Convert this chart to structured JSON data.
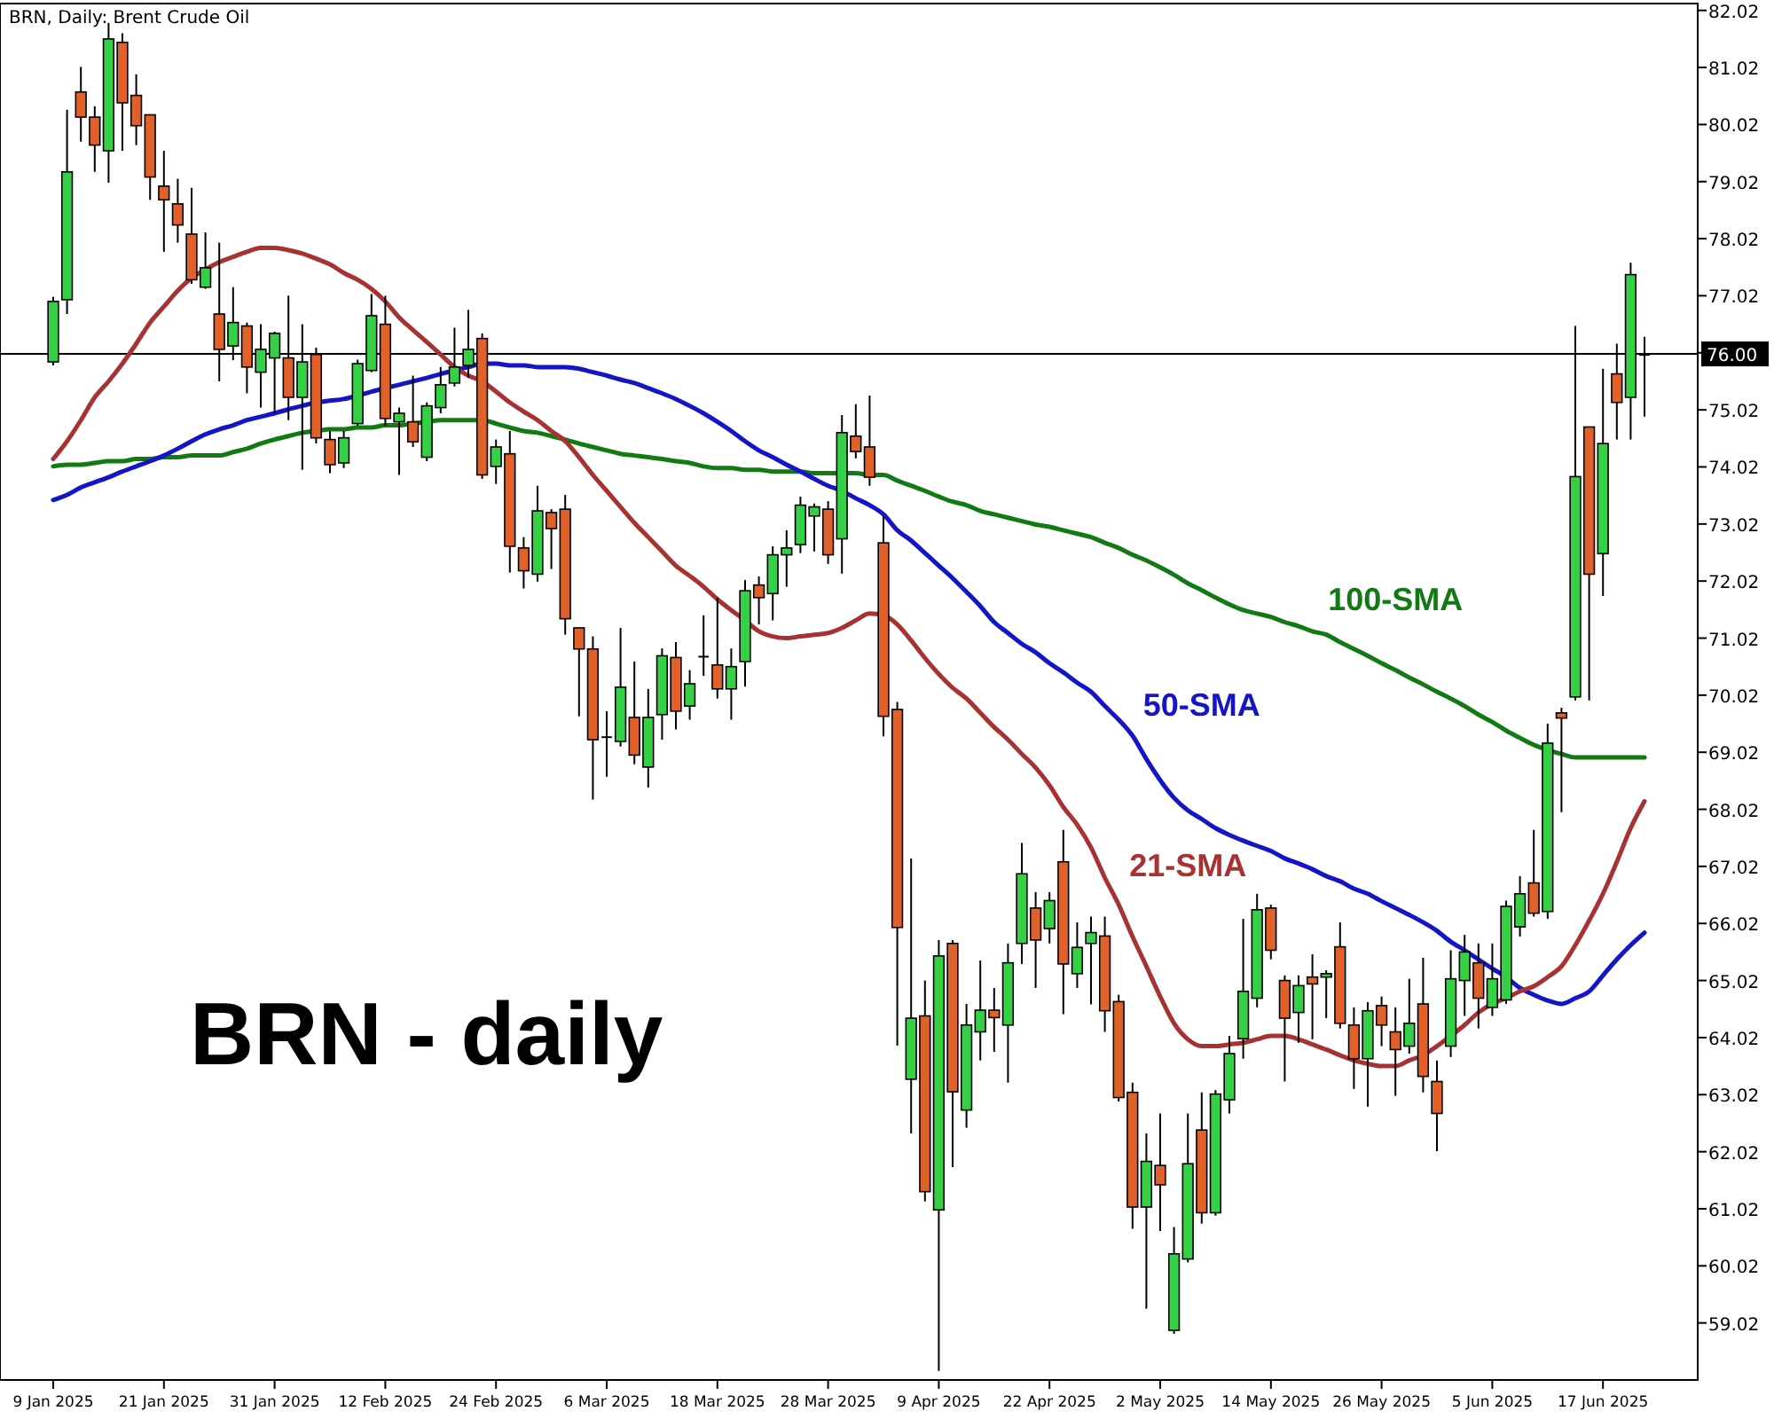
{
  "chart_data": {
    "type": "candlestick",
    "title": "BRN, Daily:  Brent Crude Oil",
    "annotations": [
      "BRN - daily"
    ],
    "categories": [
      "9 Jan 2025",
      null,
      null,
      null,
      null,
      null,
      null,
      null,
      "21 Jan 2025",
      null,
      null,
      null,
      null,
      null,
      null,
      null,
      "31 Jan 2025",
      null,
      null,
      null,
      null,
      null,
      null,
      null,
      "12 Feb 2025",
      null,
      null,
      null,
      null,
      null,
      null,
      null,
      "24 Feb 2025",
      null,
      null,
      null,
      null,
      null,
      null,
      null,
      "6 Mar 2025",
      null,
      null,
      null,
      null,
      null,
      null,
      null,
      "18 Mar 2025",
      null,
      null,
      null,
      null,
      null,
      null,
      null,
      "28 Mar 2025",
      null,
      null,
      null,
      null,
      null,
      null,
      null,
      "9 Apr 2025",
      null,
      null,
      null,
      null,
      null,
      null,
      null,
      "22 Apr 2025",
      null,
      null,
      null,
      null,
      null,
      null,
      null,
      "2 May 2025",
      null,
      null,
      null,
      null,
      null,
      null,
      null,
      "14 May 2025",
      null,
      null,
      null,
      null,
      null,
      null,
      null,
      "26 May 2025",
      null,
      null,
      null,
      null,
      null,
      null,
      null,
      "5 Jun 2025",
      null,
      null,
      null,
      null,
      null,
      null,
      null,
      "17 Jun 2025",
      null,
      null,
      null
    ],
    "series": [
      {
        "type": "line",
        "name": "100-SMA",
        "color": "#127a12",
        "values": [
          74.03,
          74.06,
          74.06,
          74.09,
          74.12,
          74.12,
          74.16,
          74.16,
          74.19,
          74.19,
          74.22,
          74.22,
          74.22,
          74.28,
          74.34,
          74.43,
          74.5,
          74.56,
          74.62,
          74.65,
          74.68,
          74.68,
          74.71,
          74.71,
          74.75,
          74.75,
          74.78,
          74.81,
          74.84,
          74.84,
          74.84,
          74.84,
          74.78,
          74.71,
          74.65,
          74.62,
          74.56,
          74.5,
          74.43,
          74.37,
          74.31,
          74.25,
          74.22,
          74.19,
          74.16,
          74.12,
          74.09,
          74.03,
          74.0,
          74.0,
          73.97,
          73.97,
          73.94,
          73.94,
          73.94,
          73.91,
          73.91,
          73.91,
          73.91,
          73.88,
          73.88,
          73.78,
          73.69,
          73.6,
          73.5,
          73.41,
          73.35,
          73.25,
          73.19,
          73.13,
          73.07,
          73.01,
          72.97,
          72.91,
          72.85,
          72.79,
          72.69,
          72.6,
          72.48,
          72.38,
          72.26,
          72.13,
          71.98,
          71.86,
          71.73,
          71.61,
          71.51,
          71.45,
          71.39,
          71.3,
          71.23,
          71.14,
          71.08,
          70.95,
          70.83,
          70.71,
          70.58,
          70.46,
          70.33,
          70.21,
          70.08,
          69.96,
          69.83,
          69.68,
          69.55,
          69.4,
          69.27,
          69.15,
          69.06,
          68.99,
          68.93,
          68.93,
          68.93,
          68.93,
          68.93,
          68.93
        ]
      },
      {
        "type": "line",
        "name": "50-SMA",
        "color": "#1414c8",
        "values": [
          73.44,
          73.53,
          73.66,
          73.75,
          73.84,
          73.94,
          74.03,
          74.12,
          74.22,
          74.34,
          74.47,
          74.59,
          74.68,
          74.75,
          74.84,
          74.9,
          74.96,
          75.03,
          75.09,
          75.15,
          75.18,
          75.21,
          75.27,
          75.34,
          75.4,
          75.46,
          75.52,
          75.58,
          75.65,
          75.71,
          75.77,
          75.83,
          75.83,
          75.8,
          75.8,
          75.77,
          75.77,
          75.77,
          75.74,
          75.68,
          75.62,
          75.55,
          75.49,
          75.4,
          75.31,
          75.21,
          75.09,
          74.96,
          74.81,
          74.65,
          74.47,
          74.31,
          74.19,
          74.06,
          73.94,
          73.81,
          73.69,
          73.6,
          73.47,
          73.35,
          73.19,
          72.91,
          72.73,
          72.51,
          72.29,
          72.07,
          71.83,
          71.58,
          71.3,
          71.11,
          70.92,
          70.77,
          70.58,
          70.42,
          70.24,
          70.08,
          69.83,
          69.59,
          69.31,
          68.9,
          68.53,
          68.22,
          68.0,
          67.85,
          67.69,
          67.57,
          67.47,
          67.38,
          67.29,
          67.16,
          67.07,
          66.97,
          66.85,
          66.76,
          66.63,
          66.54,
          66.41,
          66.29,
          66.17,
          66.04,
          65.89,
          65.7,
          65.55,
          65.39,
          65.23,
          65.08,
          64.89,
          64.77,
          64.67,
          64.61,
          64.71,
          64.83,
          65.11,
          65.39,
          65.64,
          65.86
        ]
      },
      {
        "type": "line",
        "name": "21-SMA",
        "color": "#a83232",
        "values": [
          74.16,
          74.47,
          74.84,
          75.24,
          75.52,
          75.83,
          76.18,
          76.55,
          76.83,
          77.11,
          77.33,
          77.48,
          77.61,
          77.7,
          77.79,
          77.86,
          77.86,
          77.82,
          77.76,
          77.67,
          77.57,
          77.42,
          77.3,
          77.14,
          76.92,
          76.64,
          76.42,
          76.21,
          75.99,
          75.77,
          75.62,
          75.52,
          75.34,
          75.15,
          74.99,
          74.84,
          74.65,
          74.47,
          74.19,
          73.88,
          73.6,
          73.32,
          73.04,
          72.79,
          72.54,
          72.29,
          72.11,
          71.92,
          71.7,
          71.51,
          71.33,
          71.14,
          71.05,
          71.02,
          71.05,
          71.08,
          71.11,
          71.2,
          71.33,
          71.45,
          71.42,
          71.26,
          70.98,
          70.67,
          70.39,
          70.15,
          69.96,
          69.71,
          69.46,
          69.24,
          68.99,
          68.75,
          68.44,
          68.06,
          67.75,
          67.35,
          66.82,
          66.35,
          65.79,
          65.27,
          64.74,
          64.27,
          63.99,
          63.87,
          63.87,
          63.9,
          63.93,
          63.99,
          64.05,
          64.05,
          63.99,
          63.9,
          63.81,
          63.71,
          63.62,
          63.56,
          63.52,
          63.52,
          63.62,
          63.71,
          63.87,
          64.05,
          64.24,
          64.46,
          64.61,
          64.71,
          64.83,
          64.92,
          65.08,
          65.27,
          65.64,
          66.07,
          66.54,
          67.1,
          67.69,
          68.16
        ]
      }
    ],
    "colors": [
      "#36d046",
      "#36d046",
      "#e0622a",
      "#e0622a",
      "#36d046",
      "#e0622a",
      "#e0622a",
      "#e0622a",
      "#e0622a",
      "#e0622a",
      "#e0622a",
      "#36d046",
      "#e0622a",
      "#36d046",
      "#e0622a",
      "#36d046",
      "#36d046",
      "#e0622a",
      "#36d046",
      "#e0622a",
      "#e0622a",
      "#36d046",
      "#36d046",
      "#36d046",
      "#e0622a",
      "#36d046",
      "#e0622a",
      "#36d046",
      "#36d046",
      "#36d046",
      "#36d046",
      "#e0622a",
      "#36d046",
      "#e0622a",
      "#e0622a",
      "#36d046",
      "#e0622a",
      "#e0622a",
      "#e0622a",
      "#e0622a",
      "#000000",
      "#36d046",
      "#e0622a",
      "#36d046",
      "#36d046",
      "#e0622a",
      "#36d046",
      "#000000",
      "#e0622a",
      "#36d046",
      "#36d046",
      "#e0622a",
      "#36d046",
      "#36d046",
      "#36d046",
      "#36d046",
      "#e0622a",
      "#36d046",
      "#e0622a",
      "#e0622a",
      "#e0622a",
      "#e0622a",
      "#36d046",
      "#e0622a",
      "#36d046",
      "#e0622a",
      "#36d046",
      "#36d046",
      "#e0622a",
      "#36d046",
      "#36d046",
      "#e0622a",
      "#36d046",
      "#e0622a",
      "#36d046",
      "#36d046",
      "#e0622a",
      "#e0622a",
      "#e0622a",
      "#36d046",
      "#e0622a",
      "#36d046",
      "#36d046",
      "#e0622a",
      "#36d046",
      "#36d046",
      "#36d046",
      "#36d046",
      "#e0622a",
      "#e0622a",
      "#36d046",
      "#e0622a",
      "#36d046",
      "#e0622a",
      "#e0622a",
      "#36d046",
      "#e0622a",
      "#e0622a",
      "#36d046",
      "#e0622a",
      "#e0622a",
      "#36d046",
      "#36d046",
      "#e0622a",
      "#36d046",
      "#36d046",
      "#36d046",
      "#e0622a",
      "#36d046",
      "#e0622a",
      "#36d046",
      "#e0622a",
      "#36d046",
      "#e0622a",
      "#36d046",
      "#000000"
    ],
    "ohlc": [
      [
        75.86,
        77.0,
        75.8,
        76.92
      ],
      [
        76.95,
        80.28,
        76.7,
        79.19
      ],
      [
        80.59,
        81.03,
        79.72,
        80.15
      ],
      [
        80.15,
        80.34,
        79.19,
        79.66
      ],
      [
        79.56,
        81.8,
        79.0,
        81.52
      ],
      [
        81.46,
        81.62,
        79.56,
        80.4
      ],
      [
        80.53,
        80.9,
        79.66,
        80.0
      ],
      [
        80.19,
        80.2,
        78.7,
        79.1
      ],
      [
        78.94,
        79.56,
        77.79,
        78.7
      ],
      [
        78.63,
        79.07,
        77.95,
        78.26
      ],
      [
        78.1,
        78.91,
        77.23,
        77.3
      ],
      [
        77.17,
        78.13,
        77.14,
        77.51
      ],
      [
        76.7,
        77.95,
        75.52,
        76.08
      ],
      [
        76.14,
        77.17,
        75.89,
        76.55
      ],
      [
        76.49,
        76.55,
        75.31,
        75.77
      ],
      [
        75.68,
        76.52,
        75.06,
        76.08
      ],
      [
        75.93,
        76.39,
        74.96,
        76.36
      ],
      [
        75.93,
        77.02,
        74.84,
        75.24
      ],
      [
        75.24,
        76.52,
        73.97,
        75.86
      ],
      [
        75.99,
        76.11,
        74.43,
        74.53
      ],
      [
        74.5,
        74.65,
        73.91,
        74.06
      ],
      [
        74.09,
        74.65,
        74.0,
        74.53
      ],
      [
        74.78,
        75.9,
        74.74,
        75.83
      ],
      [
        75.71,
        77.05,
        75.68,
        76.67
      ],
      [
        76.52,
        77.02,
        74.74,
        74.87
      ],
      [
        74.81,
        75.06,
        73.88,
        74.96
      ],
      [
        74.81,
        75.62,
        74.37,
        74.46
      ],
      [
        74.19,
        75.15,
        74.12,
        75.09
      ],
      [
        75.06,
        75.77,
        74.96,
        75.46
      ],
      [
        75.49,
        76.46,
        75.43,
        75.77
      ],
      [
        75.8,
        76.77,
        75.58,
        76.08
      ],
      [
        76.27,
        76.36,
        73.81,
        73.88
      ],
      [
        74.03,
        74.5,
        73.72,
        74.37
      ],
      [
        74.25,
        74.65,
        72.17,
        72.63
      ],
      [
        72.6,
        72.79,
        71.89,
        72.2
      ],
      [
        72.14,
        73.69,
        72.01,
        73.25
      ],
      [
        73.22,
        73.28,
        72.23,
        72.94
      ],
      [
        73.28,
        73.53,
        71.08,
        71.36
      ],
      [
        71.2,
        71.2,
        69.65,
        70.83
      ],
      [
        70.83,
        71.05,
        68.19,
        69.24
      ],
      [
        69.3,
        69.74,
        68.59,
        69.3
      ],
      [
        69.21,
        71.2,
        69.12,
        70.16
      ],
      [
        69.63,
        70.61,
        68.81,
        68.97
      ],
      [
        68.76,
        70.13,
        68.4,
        69.63
      ],
      [
        69.68,
        70.84,
        69.24,
        70.71
      ],
      [
        70.68,
        70.95,
        69.42,
        69.74
      ],
      [
        69.83,
        70.46,
        69.59,
        70.22
      ],
      [
        70.71,
        71.42,
        70.36,
        70.71
      ],
      [
        70.55,
        71.73,
        69.96,
        70.13
      ],
      [
        70.13,
        70.84,
        69.59,
        70.52
      ],
      [
        70.61,
        72.04,
        70.17,
        71.85
      ],
      [
        71.95,
        72.1,
        71.26,
        71.73
      ],
      [
        71.8,
        72.63,
        71.33,
        72.48
      ],
      [
        72.48,
        72.91,
        71.92,
        72.6
      ],
      [
        72.66,
        73.5,
        72.51,
        73.35
      ],
      [
        73.16,
        73.38,
        72.54,
        73.32
      ],
      [
        73.28,
        73.42,
        72.32,
        72.48
      ],
      [
        72.76,
        74.93,
        72.15,
        74.62
      ],
      [
        74.56,
        75.12,
        74.17,
        74.29
      ],
      [
        74.37,
        75.27,
        73.69,
        73.84
      ],
      [
        72.69,
        73.16,
        69.3,
        69.65
      ],
      [
        69.77,
        69.9,
        63.88,
        65.95
      ],
      [
        63.29,
        67.16,
        62.34,
        64.36
      ],
      [
        64.4,
        65.02,
        61.15,
        61.32
      ],
      [
        61.0,
        65.73,
        58.18,
        65.45
      ],
      [
        65.67,
        65.73,
        61.75,
        63.07
      ],
      [
        62.75,
        64.61,
        62.44,
        64.24
      ],
      [
        64.12,
        65.37,
        63.62,
        64.5
      ],
      [
        64.5,
        64.89,
        63.77,
        64.37
      ],
      [
        64.24,
        65.67,
        63.23,
        65.33
      ],
      [
        65.67,
        67.43,
        65.31,
        66.89
      ],
      [
        66.29,
        66.57,
        64.89,
        65.73
      ],
      [
        65.93,
        66.57,
        65.67,
        66.42
      ],
      [
        67.1,
        67.66,
        64.43,
        65.31
      ],
      [
        65.14,
        66.04,
        64.89,
        65.6
      ],
      [
        65.67,
        66.14,
        64.6,
        65.86
      ],
      [
        65.8,
        66.14,
        64.12,
        64.49
      ],
      [
        64.65,
        64.77,
        62.9,
        62.97
      ],
      [
        63.06,
        63.23,
        60.67,
        61.05
      ],
      [
        61.05,
        62.34,
        59.27,
        61.85
      ],
      [
        61.78,
        62.69,
        60.63,
        61.44
      ],
      [
        58.89,
        60.7,
        58.83,
        60.23
      ],
      [
        60.14,
        62.69,
        60.08,
        61.81
      ],
      [
        62.4,
        63.06,
        60.76,
        60.95
      ],
      [
        60.95,
        63.1,
        60.9,
        63.03
      ],
      [
        62.93,
        64.05,
        62.69,
        63.74
      ],
      [
        64.0,
        66.1,
        63.65,
        64.83
      ],
      [
        64.71,
        66.54,
        64.55,
        66.26
      ],
      [
        66.29,
        66.35,
        65.39,
        65.55
      ],
      [
        65.02,
        65.11,
        63.25,
        64.36
      ],
      [
        64.46,
        65.11,
        63.93,
        64.93
      ],
      [
        65.08,
        65.48,
        63.99,
        64.96
      ],
      [
        65.08,
        65.2,
        64.36,
        65.14
      ],
      [
        65.61,
        66.04,
        64.18,
        64.27
      ],
      [
        64.24,
        64.55,
        63.12,
        63.65
      ],
      [
        63.65,
        64.64,
        62.81,
        64.49
      ],
      [
        64.58,
        64.74,
        63.87,
        64.24
      ],
      [
        64.12,
        64.55,
        63.0,
        63.81
      ],
      [
        63.87,
        65.05,
        63.74,
        64.27
      ],
      [
        64.61,
        65.42,
        63.06,
        63.34
      ],
      [
        63.25,
        63.62,
        62.03,
        62.69
      ],
      [
        63.87,
        65.55,
        63.68,
        65.05
      ],
      [
        65.02,
        65.82,
        64.4,
        65.52
      ],
      [
        65.33,
        65.67,
        64.18,
        64.71
      ],
      [
        64.55,
        65.67,
        64.4,
        65.05
      ],
      [
        64.68,
        66.42,
        64.61,
        66.32
      ],
      [
        65.96,
        66.85,
        65.79,
        66.54
      ],
      [
        66.73,
        67.66,
        66.14,
        66.2
      ],
      [
        66.23,
        69.52,
        66.1,
        69.18
      ],
      [
        69.71,
        69.8,
        67.97,
        69.62
      ],
      [
        69.99,
        76.49,
        69.93,
        73.85
      ],
      [
        74.72,
        74.72,
        69.93,
        72.14
      ],
      [
        72.5,
        75.74,
        71.76,
        74.43
      ],
      [
        75.65,
        76.18,
        74.5,
        75.15
      ],
      [
        75.24,
        77.6,
        74.5,
        77.39
      ],
      [
        76.0,
        76.3,
        74.9,
        76.0
      ]
    ],
    "ylim": [
      58.02,
      82.14
    ],
    "yticks": [
      59.02,
      60.02,
      61.02,
      62.02,
      63.02,
      64.02,
      65.02,
      66.02,
      67.02,
      68.02,
      69.02,
      70.02,
      71.02,
      72.02,
      73.02,
      74.02,
      75.02,
      {
        "value": 76.02,
        "label": null
      },
      77.02,
      78.02,
      79.02,
      80.02,
      81.02,
      82.02
    ],
    "ref_lines": [
      {
        "axis": "y",
        "value": 76.0,
        "label": "76.00",
        "color": "#000000"
      }
    ]
  }
}
